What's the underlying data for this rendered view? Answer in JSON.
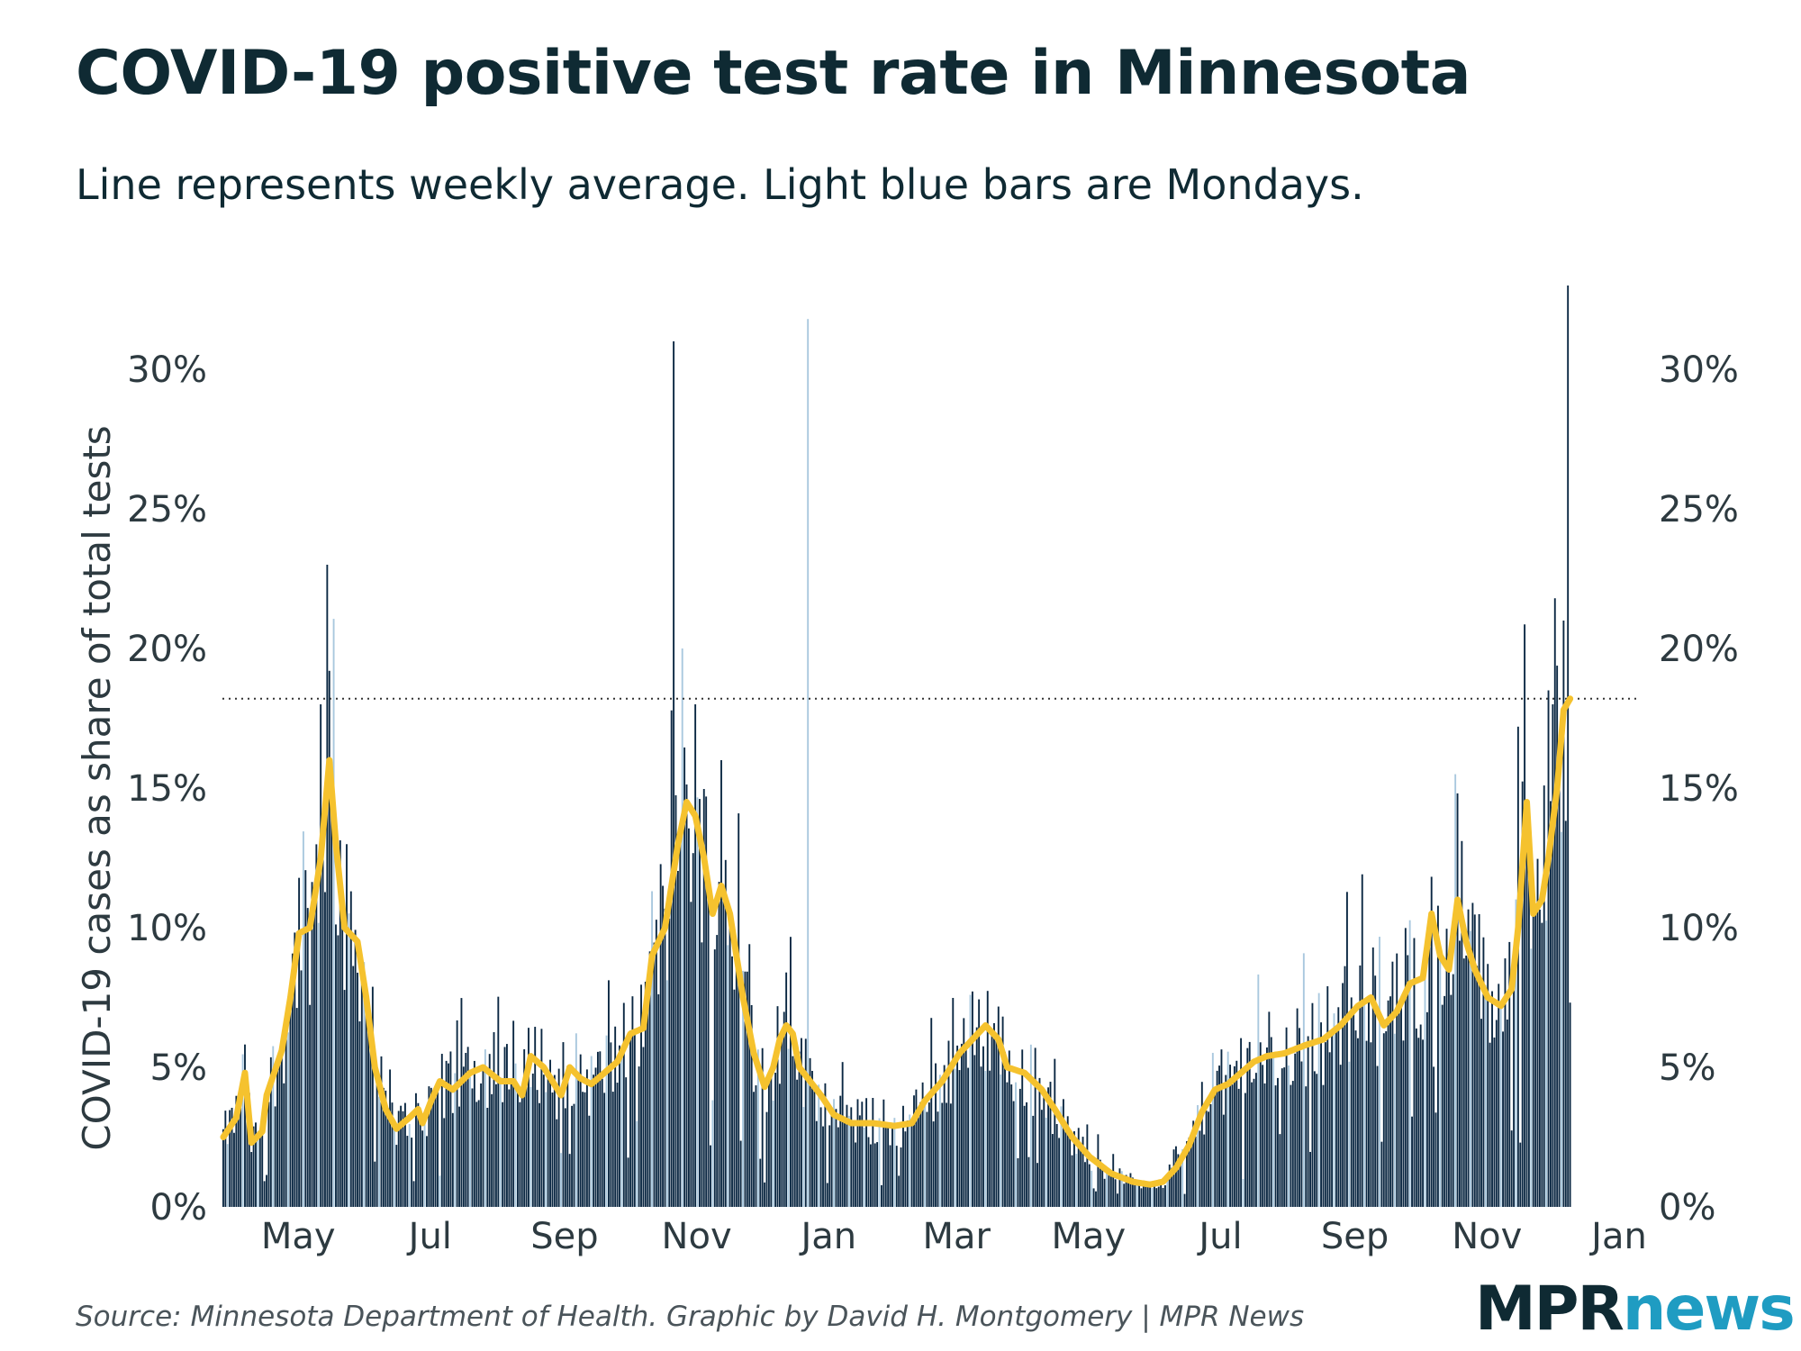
{
  "header": {
    "title": "COVID-19 positive test rate in Minnesota",
    "subtitle": "Line represents weekly average. Light blue bars are Mondays."
  },
  "footer": {
    "source": "Source: Minnesota Department of Health. Graphic by David H. Montgomery | MPR News",
    "logo_mpr": "MPR",
    "logo_news": "news"
  },
  "colors": {
    "bar_dark": "#0a2742",
    "bar_monday": "#a9c8de",
    "line": "#f5c22e",
    "text": "#2d3a40",
    "reference_line": "#333333"
  },
  "chart_data": {
    "type": "bar",
    "title": "COVID-19 positive test rate in Minnesota",
    "subtitle": "Line represents weekly average. Light blue bars are Mondays.",
    "ylabel": "COVID-19 cases as share of total tests",
    "xlabel": "",
    "ylim": [
      0,
      33
    ],
    "y_ticks": [
      0,
      5,
      10,
      15,
      20,
      25,
      30
    ],
    "y_tick_labels": [
      "0%",
      "5%",
      "10%",
      "15%",
      "20%",
      "25%",
      "30%"
    ],
    "y_axis_both_sides": true,
    "x_ticks": [
      {
        "label": "May",
        "day": 35
      },
      {
        "label": "Jul",
        "day": 96
      },
      {
        "label": "Sep",
        "day": 158
      },
      {
        "label": "Nov",
        "day": 219
      },
      {
        "label": "Jan",
        "day": 280
      },
      {
        "label": "Mar",
        "day": 339
      },
      {
        "label": "May",
        "day": 400
      },
      {
        "label": "Jul",
        "day": 461
      },
      {
        "label": "Sep",
        "day": 523
      },
      {
        "label": "Nov",
        "day": 584
      },
      {
        "label": "Jan",
        "day": 645
      }
    ],
    "start_date": "2020-03-28",
    "end_date": "2022-01-11",
    "days": 655,
    "reference_line": {
      "value": 18.2,
      "style": "dotted"
    },
    "weekly_average_keypoints": [
      [
        0,
        2.5
      ],
      [
        6,
        3.2
      ],
      [
        10,
        4.8
      ],
      [
        13,
        2.3
      ],
      [
        18,
        2.7
      ],
      [
        20,
        4.0
      ],
      [
        27,
        5.6
      ],
      [
        31,
        7.5
      ],
      [
        35,
        9.8
      ],
      [
        40,
        10.0
      ],
      [
        45,
        12.5
      ],
      [
        49,
        16.0
      ],
      [
        52,
        13.0
      ],
      [
        56,
        10.0
      ],
      [
        62,
        9.5
      ],
      [
        66,
        7.5
      ],
      [
        70,
        5.0
      ],
      [
        75,
        3.5
      ],
      [
        80,
        2.8
      ],
      [
        86,
        3.2
      ],
      [
        90,
        3.5
      ],
      [
        92,
        3.0
      ],
      [
        96,
        3.8
      ],
      [
        100,
        4.5
      ],
      [
        106,
        4.2
      ],
      [
        114,
        4.8
      ],
      [
        120,
        5.0
      ],
      [
        128,
        4.5
      ],
      [
        134,
        4.5
      ],
      [
        138,
        4.0
      ],
      [
        142,
        5.4
      ],
      [
        148,
        5.0
      ],
      [
        152,
        4.5
      ],
      [
        156,
        4.0
      ],
      [
        160,
        5.0
      ],
      [
        165,
        4.6
      ],
      [
        170,
        4.4
      ],
      [
        176,
        4.8
      ],
      [
        182,
        5.2
      ],
      [
        188,
        6.2
      ],
      [
        194,
        6.4
      ],
      [
        198,
        9.0
      ],
      [
        204,
        10.0
      ],
      [
        210,
        13.0
      ],
      [
        214,
        14.5
      ],
      [
        218,
        14.0
      ],
      [
        222,
        12.5
      ],
      [
        226,
        10.5
      ],
      [
        230,
        11.5
      ],
      [
        234,
        10.5
      ],
      [
        240,
        7.5
      ],
      [
        245,
        5.5
      ],
      [
        250,
        4.3
      ],
      [
        254,
        5.0
      ],
      [
        257,
        6.0
      ],
      [
        260,
        6.5
      ],
      [
        263,
        6.2
      ],
      [
        266,
        5.0
      ],
      [
        270,
        4.6
      ],
      [
        276,
        4.0
      ],
      [
        282,
        3.3
      ],
      [
        290,
        3.0
      ],
      [
        300,
        3.0
      ],
      [
        310,
        2.9
      ],
      [
        318,
        3.0
      ],
      [
        324,
        3.8
      ],
      [
        332,
        4.5
      ],
      [
        340,
        5.5
      ],
      [
        346,
        6.0
      ],
      [
        352,
        6.5
      ],
      [
        358,
        6.0
      ],
      [
        362,
        5.0
      ],
      [
        370,
        4.8
      ],
      [
        378,
        4.2
      ],
      [
        384,
        3.5
      ],
      [
        392,
        2.5
      ],
      [
        400,
        1.8
      ],
      [
        410,
        1.2
      ],
      [
        420,
        0.9
      ],
      [
        428,
        0.8
      ],
      [
        434,
        0.9
      ],
      [
        440,
        1.4
      ],
      [
        446,
        2.2
      ],
      [
        452,
        3.4
      ],
      [
        458,
        4.2
      ],
      [
        464,
        4.4
      ],
      [
        470,
        4.8
      ],
      [
        476,
        5.2
      ],
      [
        482,
        5.4
      ],
      [
        490,
        5.5
      ],
      [
        500,
        5.8
      ],
      [
        508,
        6.0
      ],
      [
        516,
        6.5
      ],
      [
        524,
        7.2
      ],
      [
        530,
        7.5
      ],
      [
        536,
        6.5
      ],
      [
        542,
        7.0
      ],
      [
        548,
        8.0
      ],
      [
        554,
        8.2
      ],
      [
        558,
        10.5
      ],
      [
        562,
        9.0
      ],
      [
        566,
        8.5
      ],
      [
        570,
        11.0
      ],
      [
        574,
        9.5
      ],
      [
        578,
        8.5
      ],
      [
        584,
        7.5
      ],
      [
        590,
        7.2
      ],
      [
        595,
        7.8
      ],
      [
        598,
        10.0
      ],
      [
        602,
        14.5
      ],
      [
        605,
        10.5
      ],
      [
        609,
        11.0
      ],
      [
        612,
        12.5
      ],
      [
        616,
        15.0
      ],
      [
        619,
        17.8
      ],
      [
        622,
        18.2
      ]
    ],
    "notable_daily_peaks": [
      {
        "day": 48,
        "value": 23.0
      },
      {
        "day": 45,
        "value": 18.0
      },
      {
        "day": 208,
        "value": 31.0
      },
      {
        "day": 212,
        "value": 20.0
      },
      {
        "day": 218,
        "value": 18.0
      },
      {
        "day": 230,
        "value": 16.0
      },
      {
        "day": 270,
        "value": 31.8,
        "monday": true
      },
      {
        "day": 598,
        "value": 17.2
      },
      {
        "day": 612,
        "value": 18.5
      },
      {
        "day": 614,
        "value": 18.0
      },
      {
        "day": 619,
        "value": 21.0
      },
      {
        "day": 621,
        "value": 33.0
      }
    ]
  }
}
